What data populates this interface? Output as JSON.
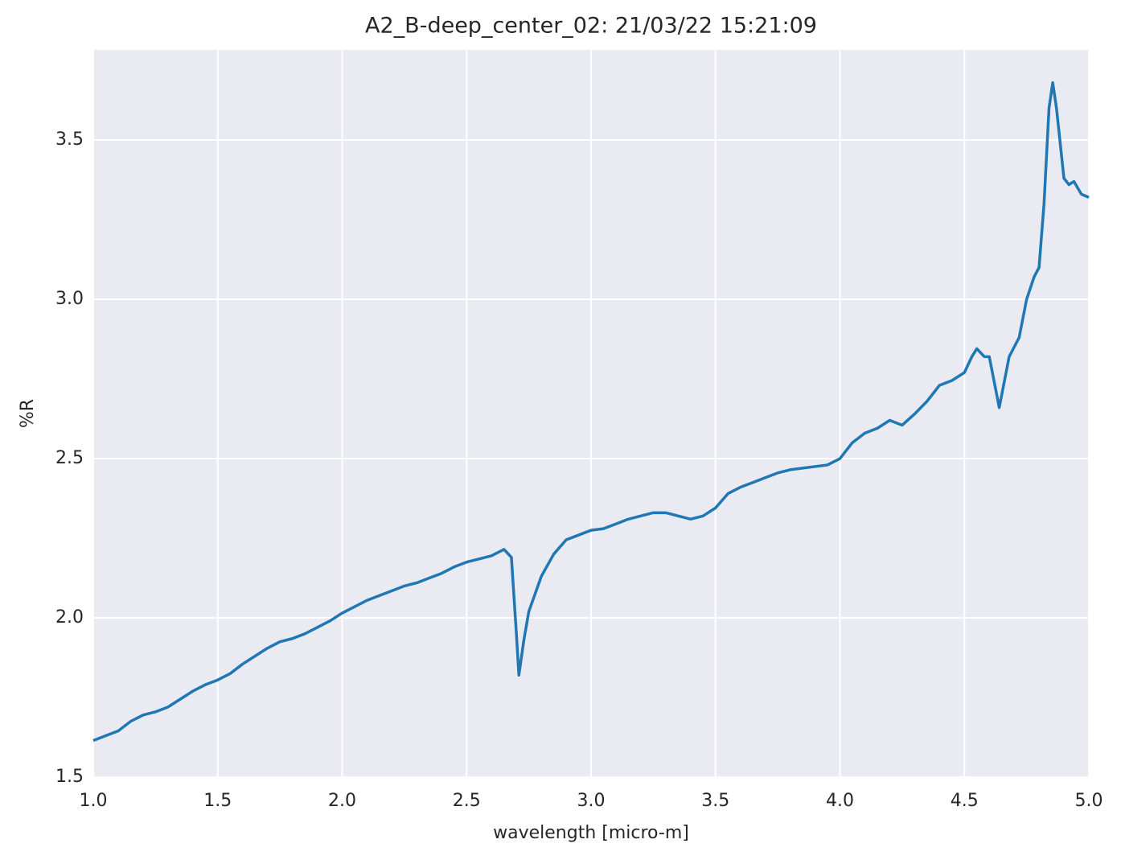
{
  "chart_data": {
    "type": "line",
    "title": "A2_B-deep_center_02:  21/03/22 15:21:09",
    "x_label": "wavelength [micro-m]",
    "y_label": "%R",
    "xlim": [
      1,
      5
    ],
    "ylim": [
      1.5,
      3.783
    ],
    "xticks": [
      {
        "value": 1,
        "label": "1.0"
      },
      1.5,
      {
        "value": 2,
        "label": "2.0"
      },
      2.5,
      {
        "value": 3,
        "label": "3.0"
      },
      3.5,
      {
        "value": 4,
        "label": "4.0"
      },
      4.5,
      {
        "value": 5,
        "label": "5.0"
      }
    ],
    "yticks": [
      1.5,
      {
        "value": 2,
        "label": "2.0"
      },
      2.5,
      {
        "value": 3,
        "label": "3.0"
      },
      3.5
    ],
    "grid": true,
    "background": "#eaeaf2",
    "x": [
      1.0,
      1.05,
      1.1,
      1.15,
      1.2,
      1.25,
      1.3,
      1.35,
      1.4,
      1.45,
      1.5,
      1.55,
      1.6,
      1.65,
      1.7,
      1.75,
      1.8,
      1.85,
      1.9,
      1.95,
      2.0,
      2.05,
      2.1,
      2.15,
      2.2,
      2.25,
      2.3,
      2.35,
      2.4,
      2.45,
      2.5,
      2.55,
      2.6,
      2.65,
      2.68,
      2.7,
      2.71,
      2.73,
      2.75,
      2.8,
      2.85,
      2.9,
      2.95,
      3.0,
      3.05,
      3.1,
      3.15,
      3.2,
      3.25,
      3.3,
      3.35,
      3.4,
      3.45,
      3.5,
      3.55,
      3.6,
      3.65,
      3.7,
      3.75,
      3.8,
      3.85,
      3.9,
      3.95,
      4.0,
      4.05,
      4.1,
      4.15,
      4.2,
      4.25,
      4.3,
      4.35,
      4.4,
      4.45,
      4.5,
      4.53,
      4.55,
      4.58,
      4.6,
      4.62,
      4.64,
      4.66,
      4.68,
      4.72,
      4.75,
      4.78,
      4.8,
      4.82,
      4.84,
      4.855,
      4.87,
      4.9,
      4.92,
      4.94,
      4.97,
      5.0
    ],
    "series": [
      {
        "color": "#1f77b4",
        "values": [
          1.615,
          1.63,
          1.645,
          1.675,
          1.695,
          1.705,
          1.72,
          1.745,
          1.77,
          1.79,
          1.805,
          1.825,
          1.855,
          1.88,
          1.905,
          1.925,
          1.935,
          1.95,
          1.97,
          1.99,
          2.015,
          2.035,
          2.055,
          2.07,
          2.085,
          2.1,
          2.11,
          2.125,
          2.14,
          2.16,
          2.175,
          2.185,
          2.195,
          2.215,
          2.19,
          1.95,
          1.82,
          1.93,
          2.02,
          2.13,
          2.2,
          2.245,
          2.26,
          2.275,
          2.28,
          2.295,
          2.31,
          2.32,
          2.33,
          2.33,
          2.32,
          2.31,
          2.32,
          2.345,
          2.39,
          2.41,
          2.425,
          2.44,
          2.455,
          2.465,
          2.47,
          2.475,
          2.48,
          2.5,
          2.55,
          2.58,
          2.595,
          2.62,
          2.605,
          2.64,
          2.68,
          2.73,
          2.745,
          2.77,
          2.82,
          2.845,
          2.82,
          2.82,
          2.74,
          2.66,
          2.74,
          2.82,
          2.88,
          3.0,
          3.07,
          3.1,
          3.3,
          3.6,
          3.68,
          3.6,
          3.38,
          3.36,
          3.37,
          3.33,
          3.32
        ]
      }
    ]
  }
}
